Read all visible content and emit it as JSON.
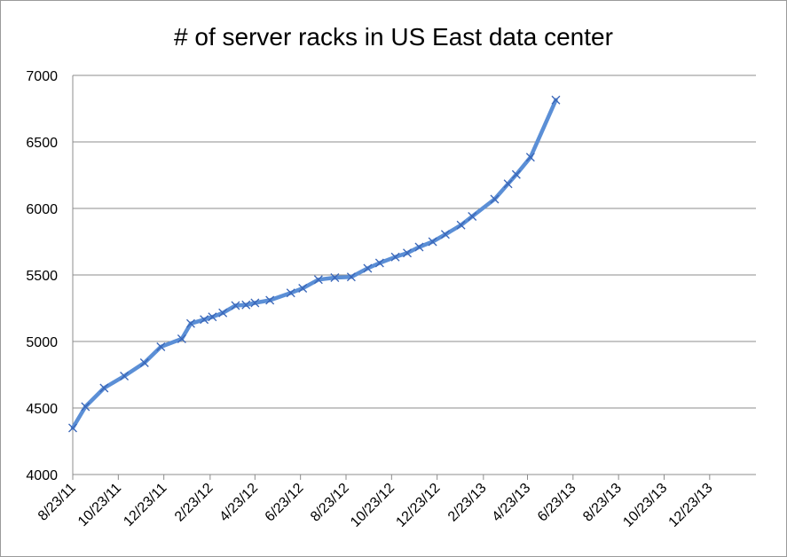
{
  "chart_data": {
    "type": "line",
    "title": "# of server racks in US East data center",
    "xlabel": "",
    "ylabel": "",
    "ylim": [
      4000,
      7000
    ],
    "yticks": [
      4000,
      4500,
      5000,
      5500,
      6000,
      6500,
      7000
    ],
    "xticks": [
      "8/23/11",
      "10/23/11",
      "12/23/11",
      "2/23/12",
      "4/23/12",
      "6/23/12",
      "8/23/12",
      "10/23/12",
      "12/23/12",
      "2/23/13",
      "4/23/13",
      "6/23/13",
      "8/23/13",
      "10/23/13",
      "12/23/13"
    ],
    "xrange": [
      "2011-08-23",
      "2014-02-23"
    ],
    "grid": "horizontal",
    "legend": "none",
    "series_color": "#5b8fd6",
    "marker_color": "#3a66b8",
    "series": [
      {
        "values": [
          [
            "2011-08-23",
            4350
          ],
          [
            "2011-09-09",
            4510
          ],
          [
            "2011-10-04",
            4650
          ],
          [
            "2011-10-31",
            4740
          ],
          [
            "2011-11-27",
            4840
          ],
          [
            "2011-12-19",
            4960
          ],
          [
            "2012-01-16",
            5020
          ],
          [
            "2012-01-28",
            5135
          ],
          [
            "2012-02-15",
            5165
          ],
          [
            "2012-02-26",
            5185
          ],
          [
            "2012-03-11",
            5215
          ],
          [
            "2012-03-28",
            5270
          ],
          [
            "2012-04-11",
            5275
          ],
          [
            "2012-04-23",
            5290
          ],
          [
            "2012-05-13",
            5310
          ],
          [
            "2012-06-10",
            5365
          ],
          [
            "2012-06-26",
            5400
          ],
          [
            "2012-07-17",
            5465
          ],
          [
            "2012-08-08",
            5480
          ],
          [
            "2012-08-30",
            5485
          ],
          [
            "2012-09-21",
            5550
          ],
          [
            "2012-10-07",
            5590
          ],
          [
            "2012-10-28",
            5635
          ],
          [
            "2012-11-13",
            5665
          ],
          [
            "2012-11-29",
            5710
          ],
          [
            "2012-12-17",
            5750
          ],
          [
            "2013-01-03",
            5805
          ],
          [
            "2013-01-24",
            5875
          ],
          [
            "2013-02-08",
            5940
          ],
          [
            "2013-03-10",
            6070
          ],
          [
            "2013-03-28",
            6185
          ],
          [
            "2013-04-08",
            6255
          ],
          [
            "2013-04-27",
            6385
          ],
          [
            "2013-05-31",
            6815
          ]
        ]
      }
    ]
  }
}
